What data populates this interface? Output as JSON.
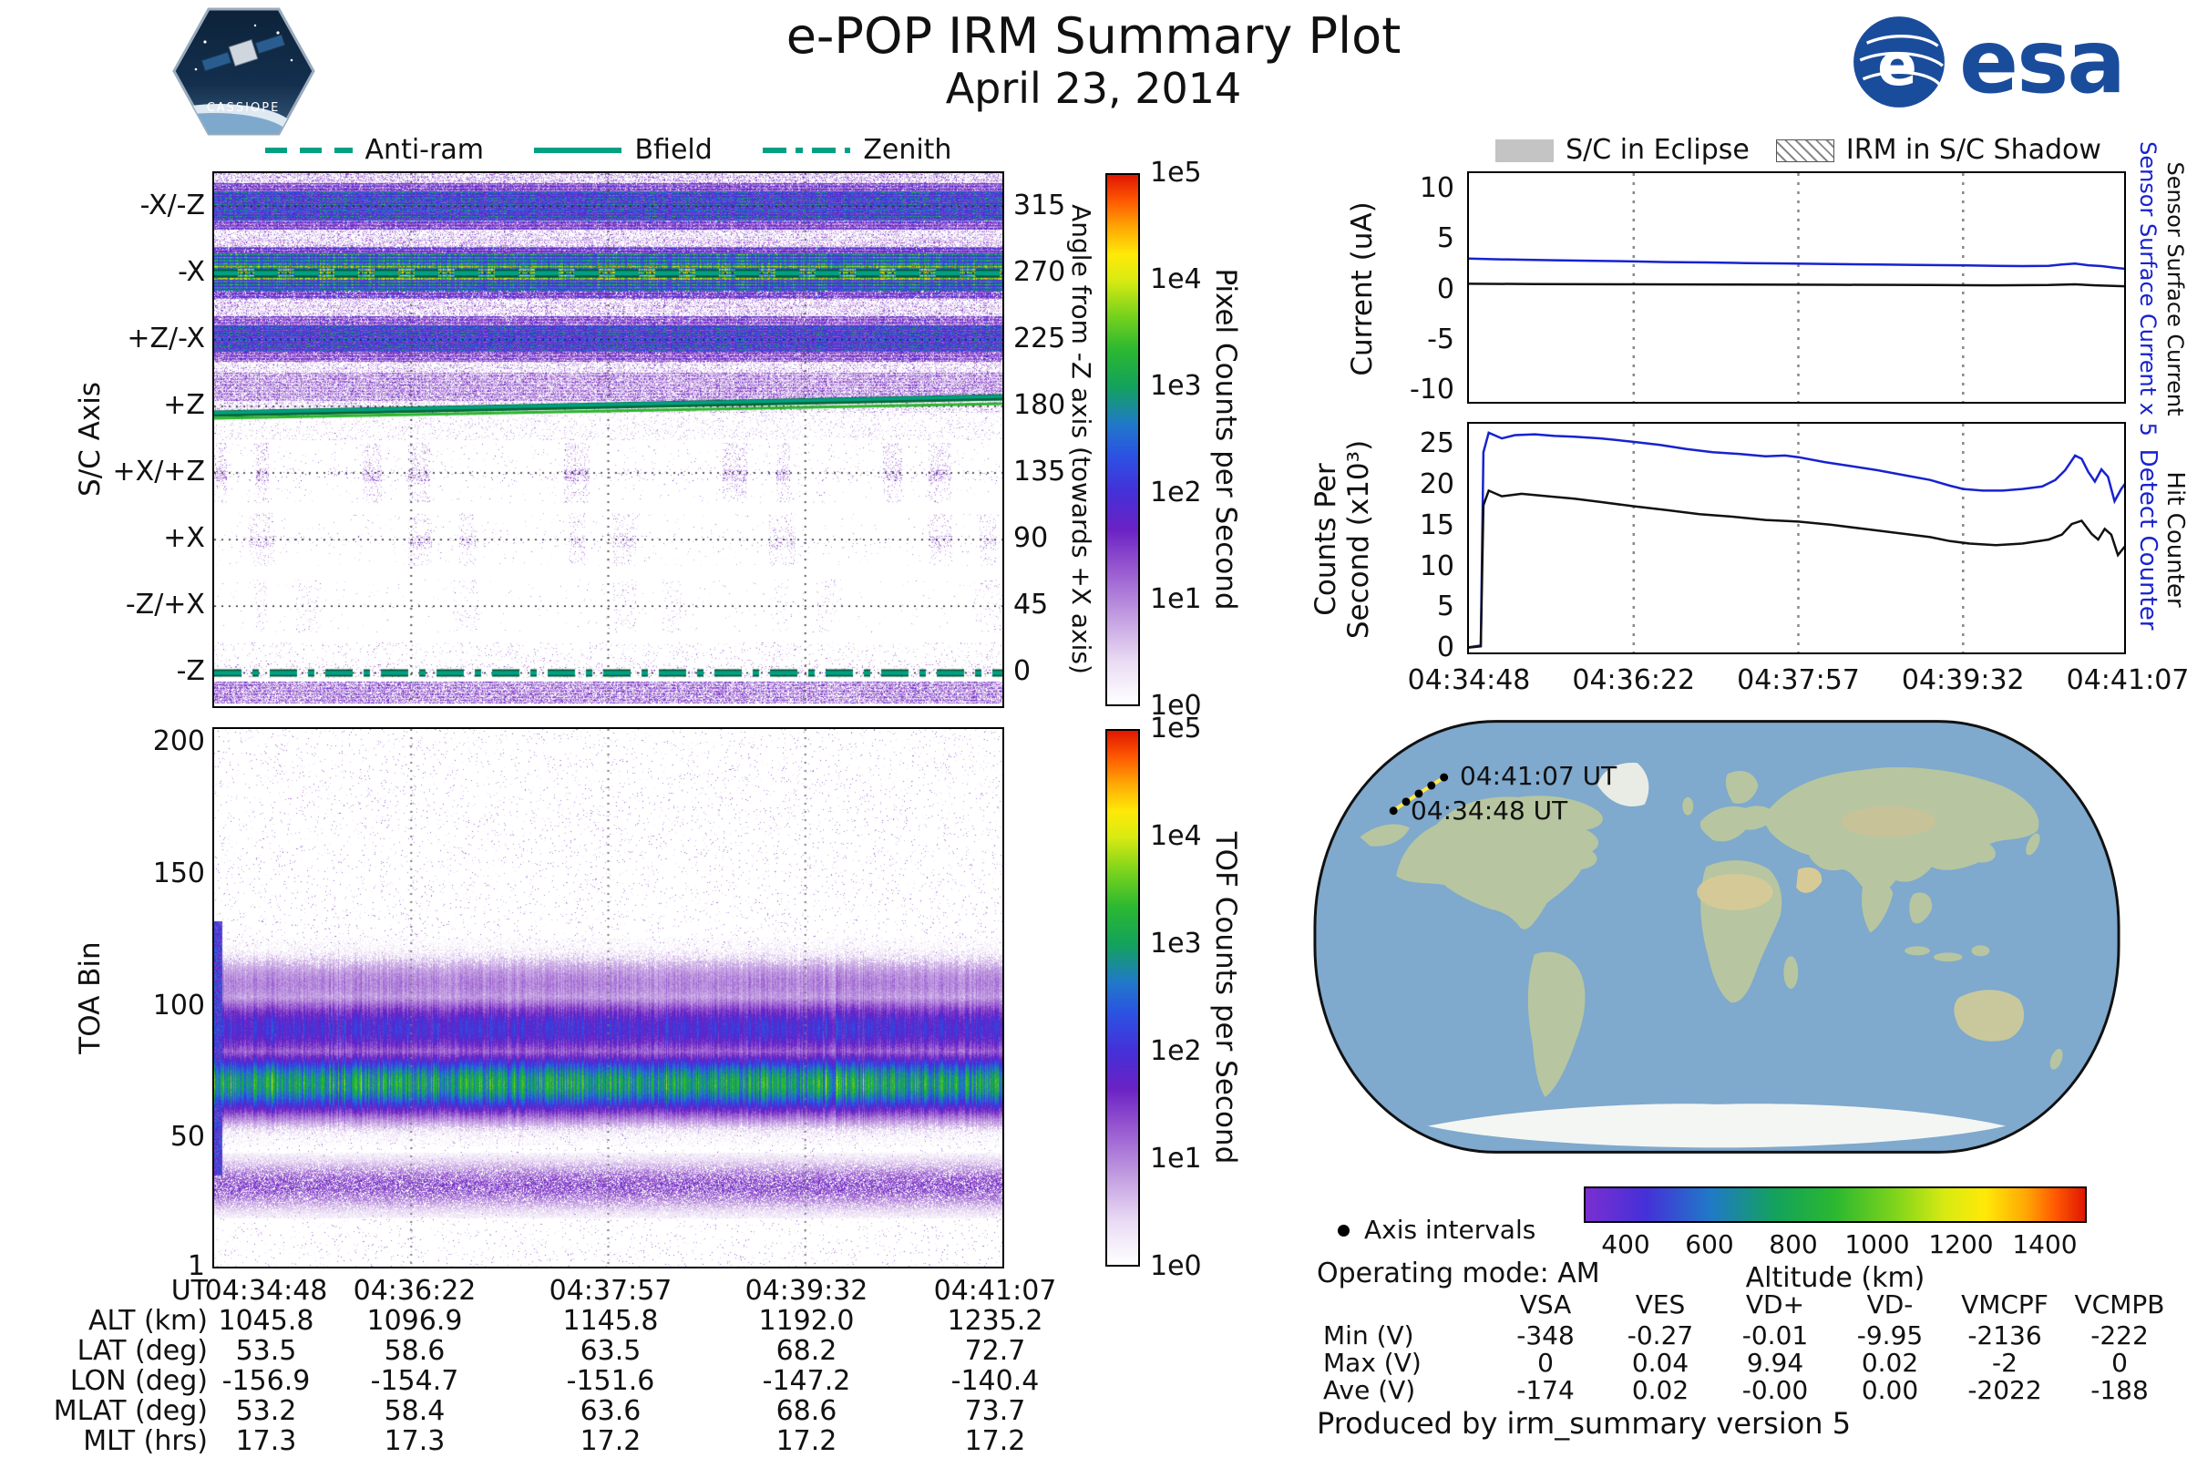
{
  "header": {
    "title": "e-POP IRM Summary Plot",
    "date": "April 23, 2014",
    "esa_text": "esa",
    "esa_e": "e",
    "badge_text": "CASSIOPE"
  },
  "orientation_legend": {
    "items": [
      {
        "label": "Anti-ram",
        "style": "dashed"
      },
      {
        "label": "Bfield",
        "style": "solid"
      },
      {
        "label": "Zenith",
        "style": "dashdot"
      }
    ]
  },
  "eclipse_legend": {
    "items": [
      {
        "label": "S/C in Eclipse",
        "swatch": "gray-fill"
      },
      {
        "label": "IRM in S/C Shadow",
        "swatch": "diagonal-hatch"
      }
    ]
  },
  "notes": {
    "axis_intervals_label": "Axis intervals",
    "operating_mode": "Operating mode: AM",
    "produced_by": "Produced by irm_summary version 5"
  },
  "colors": {
    "orientation": "#00a183",
    "series_blue": "#1822cf",
    "series_black": "#111111",
    "eclipse_gray": "#c4c4c4",
    "esa_blue": "#1a4c9c",
    "ocean": "#7fa9cd",
    "land": "#b7c6a0",
    "track_yellow": "#ffe84a",
    "spectral_stops": [
      [
        0,
        "#ffffff"
      ],
      [
        0.08,
        "#eadcf4"
      ],
      [
        0.17,
        "#c09ae0"
      ],
      [
        0.26,
        "#9555cf"
      ],
      [
        0.33,
        "#6a22c4"
      ],
      [
        0.4,
        "#4530d8"
      ],
      [
        0.47,
        "#2b52e2"
      ],
      [
        0.53,
        "#2079c8"
      ],
      [
        0.6,
        "#13a25c"
      ],
      [
        0.67,
        "#2bb830"
      ],
      [
        0.74,
        "#7fd41c"
      ],
      [
        0.8,
        "#d8ea12"
      ],
      [
        0.85,
        "#ffe908"
      ],
      [
        0.9,
        "#ffa904"
      ],
      [
        0.95,
        "#ff5a02"
      ],
      [
        1,
        "#e01702"
      ]
    ],
    "altitude_stops": [
      [
        0,
        "#7a2fd0"
      ],
      [
        0.12,
        "#4530d8"
      ],
      [
        0.25,
        "#2079c8"
      ],
      [
        0.38,
        "#13a25c"
      ],
      [
        0.5,
        "#2bb830"
      ],
      [
        0.62,
        "#7fd41c"
      ],
      [
        0.72,
        "#d8ea12"
      ],
      [
        0.8,
        "#ffe908"
      ],
      [
        0.88,
        "#ffa904"
      ],
      [
        0.94,
        "#ff5a02"
      ],
      [
        1,
        "#e01702"
      ]
    ]
  },
  "chart_data": [
    {
      "id": "axis_spectrogram",
      "type": "heatmap",
      "ylabel": "S/C Axis",
      "ylabel_right": "Angle from -Z axis (towards +X axis)",
      "band_labels": [
        "-X/-Z",
        "-X",
        "+Z/-X",
        "+Z",
        "+X/+Z",
        "+X",
        "-Z/+X",
        "-Z"
      ],
      "right_tick_labels": [
        "315",
        "270",
        "225",
        "180",
        "135",
        "90",
        "45",
        "0"
      ],
      "x_tick_labels": [
        "04:34:48",
        "04:36:22",
        "04:37:57",
        "04:39:32",
        "04:41:07"
      ],
      "scale": "log10 counts 0 to 5",
      "description": "Pixel counts per second vs time for each spacecraft axis; bright yellow-green emission band on -X, dense green/blue bands on -X/-Z and +Z/-X, purple noise on +Z and -Z, sparse counts on +X/+Z, +X and -Z/+X",
      "overlays": [
        {
          "name": "Anti-ram",
          "style": "dashed",
          "band": "-X",
          "angle_deg": 270
        },
        {
          "name": "Bfield",
          "style": "solid",
          "band": "+Z",
          "angle_deg_start": 187,
          "angle_deg_end": 179
        },
        {
          "name": "Zenith",
          "style": "dashdot",
          "band": "-Z",
          "angle_deg": 0
        }
      ],
      "colorbar": {
        "label": "Pixel Counts per Second",
        "tick_labels": [
          "1e5",
          "1e4",
          "1e3",
          "1e2",
          "1e1",
          "1e0"
        ]
      }
    },
    {
      "id": "tof_spectrogram",
      "type": "heatmap",
      "ylabel": "TOA Bin",
      "y_tick_labels": [
        "200",
        "150",
        "100",
        "50",
        "1"
      ],
      "y_range": [
        1,
        205
      ],
      "x_tick_labels": [
        "04:34:48",
        "04:36:22",
        "04:37:57",
        "04:39:32",
        "04:41:07"
      ],
      "features": [
        {
          "name": "main-tof-band",
          "toa_bin_range": [
            52,
            118
          ],
          "peak_bin": 70,
          "peak_log10_counts": 3.3
        },
        {
          "name": "secondary-band",
          "toa_bin_range": [
            22,
            42
          ],
          "peak_bin": 31,
          "peak_log10_counts": 1.7
        },
        {
          "name": "background-speckle",
          "log10_counts_max": 1.3
        }
      ],
      "colorbar": {
        "label": "TOF Counts per Second",
        "tick_labels": [
          "1e5",
          "1e4",
          "1e3",
          "1e2",
          "1e1",
          "1e0"
        ]
      }
    },
    {
      "id": "current_plot",
      "type": "line",
      "ylabel": "Current (uA)",
      "ylim": [
        -11.5,
        11.5
      ],
      "y_ticks": [
        10,
        5,
        0,
        -5,
        -10
      ],
      "grid_x": [
        0.25,
        0.5,
        0.75
      ],
      "series": [
        {
          "name": "Sensor Surface Current x 5",
          "color": "#1822cf",
          "points": [
            [
              0,
              3.05
            ],
            [
              0.04,
              2.98
            ],
            [
              0.08,
              2.93
            ],
            [
              0.13,
              2.88
            ],
            [
              0.18,
              2.83
            ],
            [
              0.25,
              2.76
            ],
            [
              0.3,
              2.7
            ],
            [
              0.36,
              2.66
            ],
            [
              0.42,
              2.6
            ],
            [
              0.48,
              2.56
            ],
            [
              0.55,
              2.5
            ],
            [
              0.62,
              2.46
            ],
            [
              0.68,
              2.42
            ],
            [
              0.74,
              2.38
            ],
            [
              0.8,
              2.33
            ],
            [
              0.84,
              2.3
            ],
            [
              0.88,
              2.33
            ],
            [
              0.9,
              2.45
            ],
            [
              0.92,
              2.55
            ],
            [
              0.94,
              2.38
            ],
            [
              0.96,
              2.3
            ],
            [
              0.98,
              2.15
            ],
            [
              1,
              2.0
            ]
          ]
        },
        {
          "name": "Sensor Surface Current",
          "color": "#111111",
          "points": [
            [
              0,
              0.55
            ],
            [
              0.1,
              0.52
            ],
            [
              0.25,
              0.5
            ],
            [
              0.4,
              0.48
            ],
            [
              0.55,
              0.45
            ],
            [
              0.7,
              0.42
            ],
            [
              0.8,
              0.4
            ],
            [
              0.88,
              0.42
            ],
            [
              0.92,
              0.5
            ],
            [
              0.95,
              0.4
            ],
            [
              1,
              0.3
            ]
          ]
        }
      ]
    },
    {
      "id": "counts_plot",
      "type": "line",
      "ylabel_line1": "Counts Per",
      "ylabel_line2": "Second (x10³)",
      "ylim": [
        -1,
        27.5
      ],
      "y_ticks": [
        25,
        20,
        15,
        10,
        5,
        0
      ],
      "grid_x": [
        0.25,
        0.5,
        0.75
      ],
      "x_tick_labels": [
        "04:34:48",
        "04:36:22",
        "04:37:57",
        "04:39:32",
        "04:41:07"
      ],
      "series": [
        {
          "name": "Detect Counter",
          "color": "#1822cf",
          "points": [
            [
              0,
              0.1
            ],
            [
              0.018,
              0.3
            ],
            [
              0.022,
              24.0
            ],
            [
              0.03,
              26.4
            ],
            [
              0.05,
              25.7
            ],
            [
              0.07,
              26.1
            ],
            [
              0.1,
              26.2
            ],
            [
              0.13,
              26.0
            ],
            [
              0.16,
              25.9
            ],
            [
              0.2,
              25.7
            ],
            [
              0.248,
              25.3
            ],
            [
              0.29,
              24.9
            ],
            [
              0.33,
              24.4
            ],
            [
              0.37,
              24.0
            ],
            [
              0.41,
              23.8
            ],
            [
              0.45,
              23.5
            ],
            [
              0.48,
              23.6
            ],
            [
              0.5,
              23.4
            ],
            [
              0.54,
              22.8
            ],
            [
              0.58,
              22.3
            ],
            [
              0.62,
              21.8
            ],
            [
              0.66,
              21.2
            ],
            [
              0.7,
              20.6
            ],
            [
              0.73,
              19.9
            ],
            [
              0.75,
              19.5
            ],
            [
              0.78,
              19.3
            ],
            [
              0.81,
              19.3
            ],
            [
              0.84,
              19.5
            ],
            [
              0.87,
              19.8
            ],
            [
              0.89,
              20.6
            ],
            [
              0.905,
              21.8
            ],
            [
              0.92,
              23.6
            ],
            [
              0.93,
              23.2
            ],
            [
              0.94,
              21.6
            ],
            [
              0.95,
              20.4
            ],
            [
              0.96,
              21.9
            ],
            [
              0.97,
              21.0
            ],
            [
              0.98,
              18.0
            ],
            [
              0.99,
              19.5
            ],
            [
              1,
              20.6
            ]
          ]
        },
        {
          "name": "Hit Counter",
          "color": "#111111",
          "points": [
            [
              0,
              0.05
            ],
            [
              0.018,
              0.2
            ],
            [
              0.022,
              17.5
            ],
            [
              0.03,
              19.3
            ],
            [
              0.05,
              18.6
            ],
            [
              0.08,
              18.9
            ],
            [
              0.12,
              18.6
            ],
            [
              0.16,
              18.3
            ],
            [
              0.2,
              17.9
            ],
            [
              0.248,
              17.4
            ],
            [
              0.3,
              16.9
            ],
            [
              0.35,
              16.4
            ],
            [
              0.4,
              16.1
            ],
            [
              0.45,
              15.7
            ],
            [
              0.5,
              15.5
            ],
            [
              0.55,
              15.1
            ],
            [
              0.6,
              14.6
            ],
            [
              0.65,
              14.1
            ],
            [
              0.7,
              13.6
            ],
            [
              0.73,
              13.1
            ],
            [
              0.76,
              12.8
            ],
            [
              0.8,
              12.6
            ],
            [
              0.84,
              12.8
            ],
            [
              0.88,
              13.3
            ],
            [
              0.9,
              13.9
            ],
            [
              0.915,
              15.2
            ],
            [
              0.93,
              15.6
            ],
            [
              0.945,
              14.0
            ],
            [
              0.955,
              13.3
            ],
            [
              0.965,
              14.6
            ],
            [
              0.975,
              13.9
            ],
            [
              0.985,
              11.4
            ],
            [
              1,
              12.9
            ]
          ]
        }
      ]
    },
    {
      "id": "ephemeris_table",
      "type": "table",
      "rows": [
        {
          "label": "UT",
          "values": [
            "04:34:48",
            "04:36:22",
            "04:37:57",
            "04:39:32",
            "04:41:07"
          ]
        },
        {
          "label": "ALT (km)",
          "values": [
            "1045.8",
            "1096.9",
            "1145.8",
            "1192.0",
            "1235.2"
          ]
        },
        {
          "label": "LAT (deg)",
          "values": [
            "53.5",
            "58.6",
            "63.5",
            "68.2",
            "72.7"
          ]
        },
        {
          "label": "LON (deg)",
          "values": [
            "-156.9",
            "-154.7",
            "-151.6",
            "-147.2",
            "-140.4"
          ]
        },
        {
          "label": "MLAT (deg)",
          "values": [
            "53.2",
            "58.4",
            "63.6",
            "68.6",
            "73.7"
          ]
        },
        {
          "label": "MLT (hrs)",
          "values": [
            "17.3",
            "17.3",
            "17.2",
            "17.2",
            "17.2"
          ]
        }
      ]
    },
    {
      "id": "voltage_table",
      "type": "table",
      "column_headers": [
        "VSA",
        "VES",
        "VD+",
        "VD-",
        "VMCPF",
        "VCMPB"
      ],
      "rows": [
        {
          "label": "Min (V)",
          "values": [
            "-348",
            "-0.27",
            "-0.01",
            "-9.95",
            "-2136",
            "-222"
          ]
        },
        {
          "label": "Max (V)",
          "values": [
            "0",
            "0.04",
            "9.94",
            "0.02",
            "-2",
            "0"
          ]
        },
        {
          "label": "Ave (V)",
          "values": [
            "-174",
            "0.02",
            "-0.00",
            "0.00",
            "-2022",
            "-188"
          ]
        }
      ]
    },
    {
      "id": "ground_track_map",
      "type": "map",
      "projection": "robinson-like world map",
      "track_points_viewbox": [
        [
          92,
          103
        ],
        [
          106,
          93
        ],
        [
          120,
          84
        ],
        [
          134,
          75
        ],
        [
          148,
          66
        ]
      ],
      "start_label": "04:34:48 UT",
      "end_label": "04:41:07 UT",
      "colorbar": {
        "label": "Altitude (km)",
        "tick_values": [
          400,
          600,
          800,
          1000,
          1200,
          1400
        ],
        "range": [
          300,
          1500
        ]
      }
    }
  ]
}
